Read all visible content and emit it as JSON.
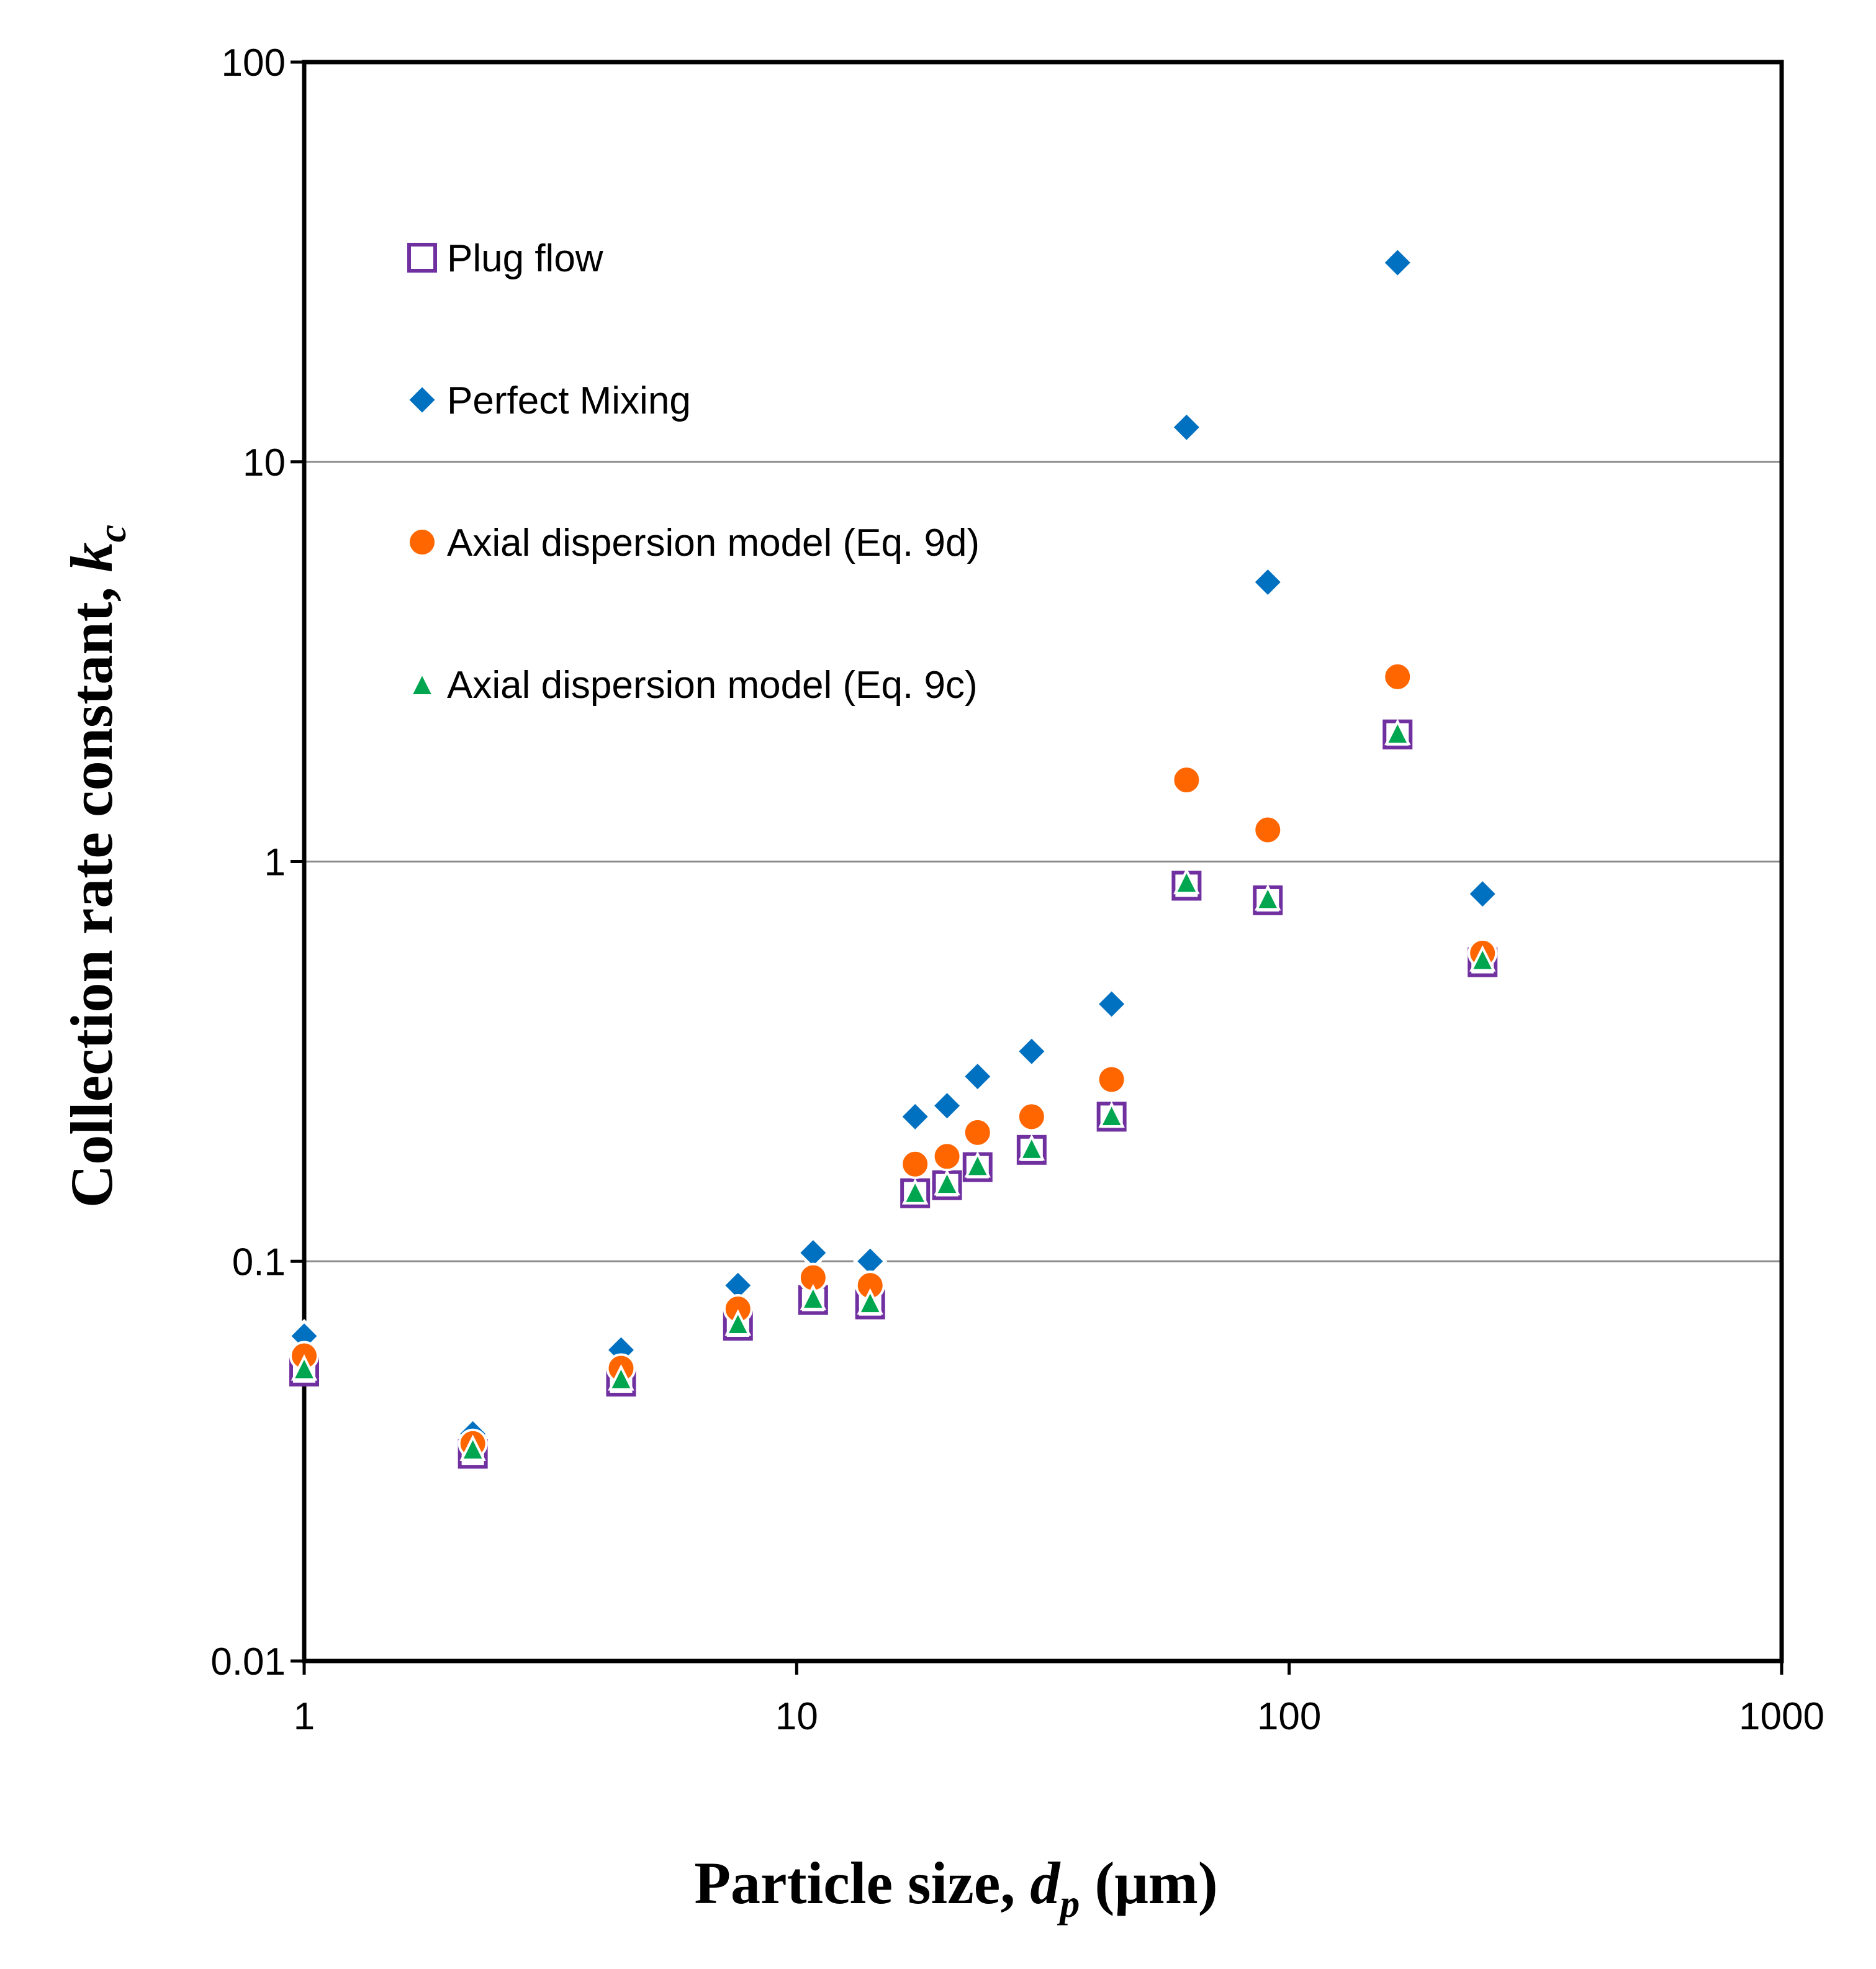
{
  "chart_data": {
    "type": "scatter",
    "xscale": "log",
    "yscale": "log",
    "xlim": [
      1,
      1000
    ],
    "ylim": [
      0.01,
      100
    ],
    "xticks": [
      "1",
      "10",
      "100",
      "1000"
    ],
    "yticks": [
      "0.01",
      "0.1",
      "1",
      "10",
      "100"
    ],
    "xlabel": {
      "main": "Particle size, ",
      "var": "d",
      "sub": "p",
      "unit": " (μm)"
    },
    "ylabel": {
      "main": "Collection rate constant, ",
      "var": "k",
      "sub": "c"
    },
    "legend_position": "upper-left",
    "grid": "horizontal major",
    "series": [
      {
        "name": "Plug flow",
        "marker": "open-square",
        "color": "#7030A0",
        "x": [
          1,
          2.2,
          4.4,
          7.6,
          10.8,
          14.1,
          17.4,
          20.2,
          23.3,
          30.0,
          43.6,
          61.9,
          90.5,
          166,
          247
        ],
        "y": [
          0.053,
          0.033,
          0.05,
          0.069,
          0.08,
          0.078,
          0.148,
          0.155,
          0.172,
          0.19,
          0.23,
          0.87,
          0.8,
          2.08,
          0.56
        ]
      },
      {
        "name": "Perfect Mixing",
        "marker": "diamond",
        "color": "#0070C0",
        "x": [
          1,
          2.2,
          4.4,
          7.6,
          10.8,
          14.1,
          17.4,
          20.2,
          23.3,
          30.0,
          43.6,
          61.9,
          90.5,
          166,
          247
        ],
        "y": [
          0.065,
          0.037,
          0.06,
          0.087,
          0.105,
          0.1,
          0.23,
          0.245,
          0.29,
          0.335,
          0.44,
          12.2,
          5.0,
          31.5,
          0.83
        ]
      },
      {
        "name": "Axial dispersion model (Eq. 9d)",
        "marker": "circle",
        "color": "#FF6600",
        "x": [
          1,
          2.2,
          4.4,
          7.6,
          10.8,
          14.1,
          17.4,
          20.2,
          23.3,
          30.0,
          43.6,
          61.9,
          90.5,
          166,
          247
        ],
        "y": [
          0.058,
          0.035,
          0.054,
          0.076,
          0.091,
          0.087,
          0.175,
          0.183,
          0.21,
          0.23,
          0.285,
          1.6,
          1.2,
          2.9,
          0.59
        ]
      },
      {
        "name": "Axial dispersion model (Eq. 9c)",
        "marker": "triangle",
        "color": "#00A550",
        "x": [
          1,
          2.2,
          4.4,
          7.6,
          10.8,
          14.1,
          17.4,
          20.2,
          23.3,
          30.0,
          43.6,
          61.9,
          90.5,
          166,
          247
        ],
        "y": [
          0.054,
          0.034,
          0.051,
          0.07,
          0.081,
          0.079,
          0.149,
          0.157,
          0.174,
          0.192,
          0.232,
          0.89,
          0.81,
          2.1,
          0.57
        ]
      }
    ]
  }
}
